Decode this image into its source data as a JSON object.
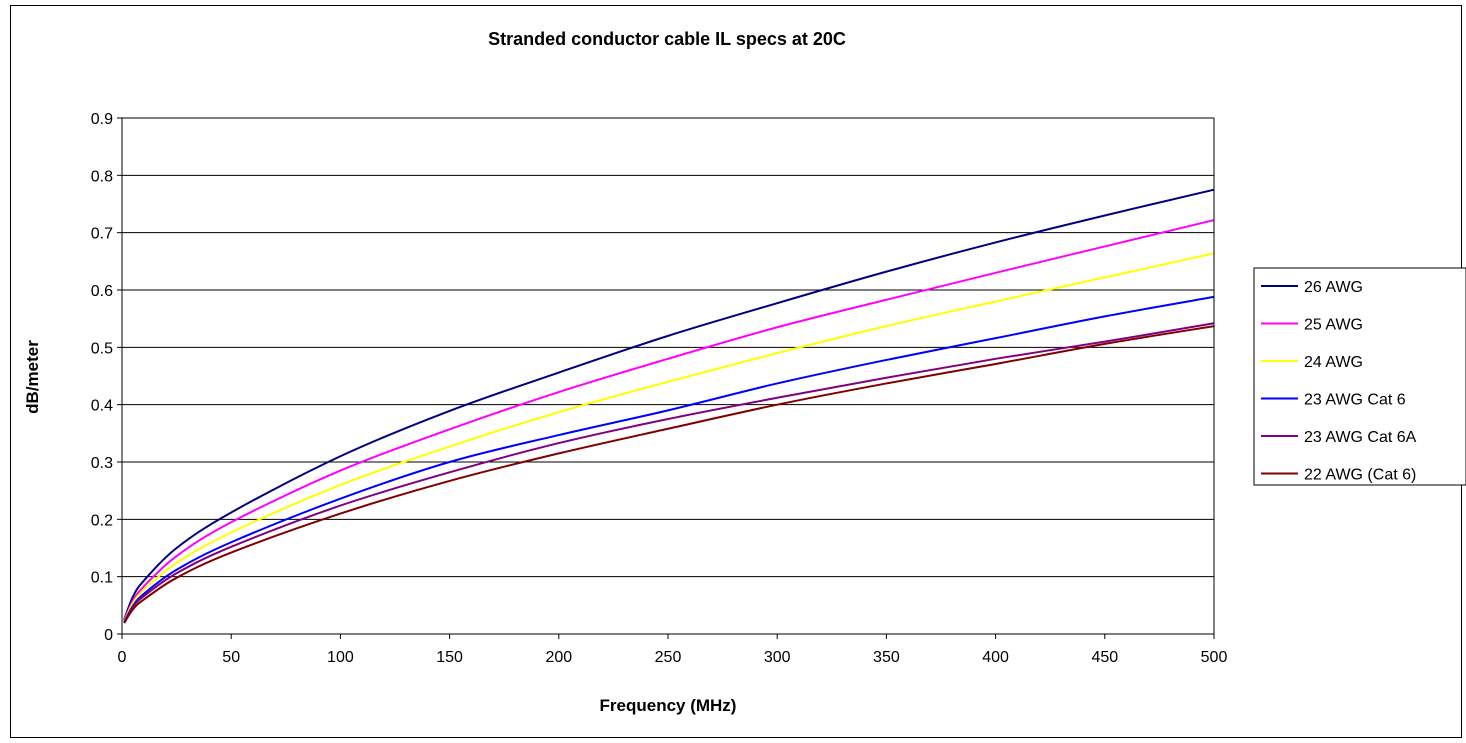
{
  "chart_data": {
    "type": "line",
    "title": "Stranded conductor cable IL specs at 20C",
    "xlabel": "Frequency (MHz)",
    "ylabel": "dB/meter",
    "xlim": [
      0,
      500
    ],
    "ylim": [
      0,
      0.9
    ],
    "x_ticks": [
      "0",
      "50",
      "100",
      "150",
      "200",
      "250",
      "300",
      "350",
      "400",
      "450",
      "500"
    ],
    "y_ticks": [
      "0",
      "0.1",
      "0.2",
      "0.3",
      "0.4",
      "0.5",
      "0.6",
      "0.7",
      "0.8",
      "0.9"
    ],
    "grid": "horizontal",
    "legend_position": "right",
    "x": [
      1,
      5,
      10,
      25,
      50,
      100,
      150,
      200,
      250,
      300,
      350,
      400,
      450,
      500
    ],
    "series": [
      {
        "name": "26 AWG",
        "color": "#000080",
        "values": [
          0.025,
          0.065,
          0.093,
          0.15,
          0.212,
          0.31,
          0.389,
          0.456,
          0.52,
          0.577,
          0.632,
          0.683,
          0.73,
          0.775
        ]
      },
      {
        "name": "25 AWG",
        "color": "#ff00ff",
        "values": [
          0.023,
          0.058,
          0.083,
          0.136,
          0.195,
          0.285,
          0.357,
          0.422,
          0.48,
          0.535,
          0.583,
          0.63,
          0.676,
          0.722
        ]
      },
      {
        "name": "24 AWG",
        "color": "#ffff00",
        "values": [
          0.022,
          0.054,
          0.077,
          0.124,
          0.177,
          0.26,
          0.327,
          0.387,
          0.44,
          0.49,
          0.537,
          0.58,
          0.622,
          0.664
        ]
      },
      {
        "name": "23 AWG Cat 6",
        "color": "#0000ff",
        "values": [
          0.021,
          0.049,
          0.07,
          0.112,
          0.16,
          0.236,
          0.3,
          0.347,
          0.39,
          0.437,
          0.478,
          0.516,
          0.554,
          0.588
        ]
      },
      {
        "name": "23 AWG Cat 6A",
        "color": "#800080",
        "values": [
          0.02,
          0.047,
          0.066,
          0.106,
          0.152,
          0.224,
          0.282,
          0.333,
          0.375,
          0.412,
          0.447,
          0.48,
          0.51,
          0.542
        ]
      },
      {
        "name": "22 AWG (Cat 6)",
        "color": "#800000",
        "values": [
          0.019,
          0.043,
          0.06,
          0.098,
          0.142,
          0.21,
          0.267,
          0.315,
          0.358,
          0.4,
          0.437,
          0.471,
          0.506,
          0.537
        ]
      }
    ]
  }
}
